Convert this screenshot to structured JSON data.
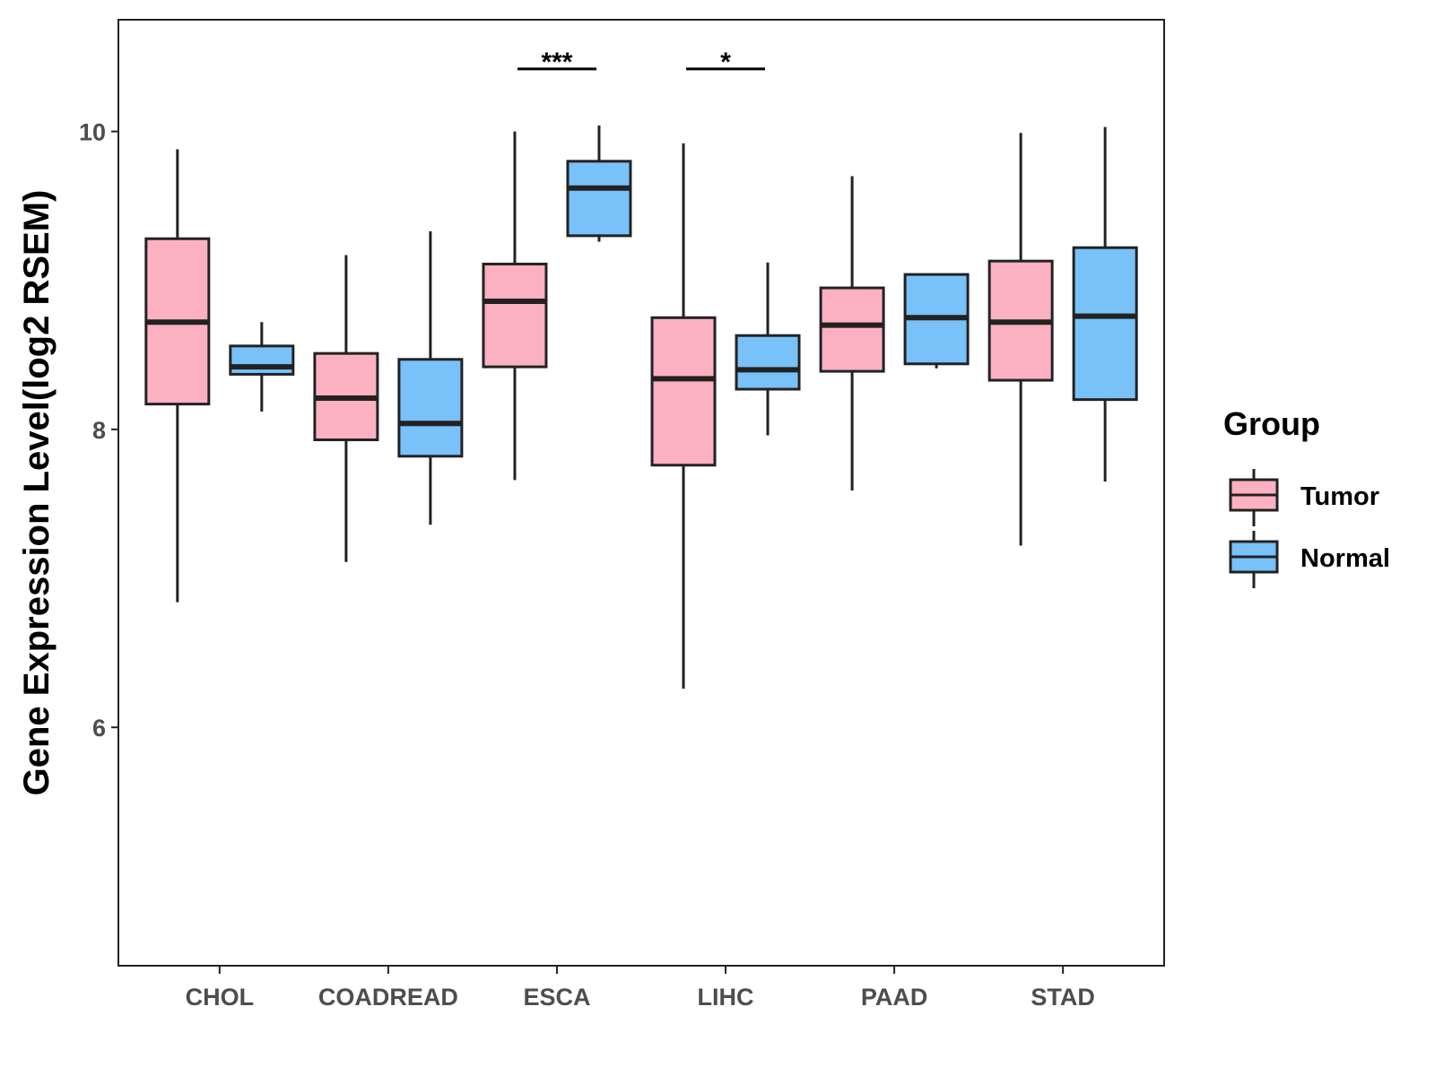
{
  "chart_data": {
    "type": "box",
    "title": "",
    "xlabel": "",
    "ylabel": "Gene Expression Level(log2 RSEM)",
    "ylim": [
      4.4,
      10.75
    ],
    "yticks": [
      6,
      8,
      10
    ],
    "categories": [
      "CHOL",
      "COADREAD",
      "ESCA",
      "LIHC",
      "PAAD",
      "STAD"
    ],
    "grid": false,
    "legend": {
      "title": "Group",
      "position": "right",
      "entries": [
        "Tumor",
        "Normal"
      ]
    },
    "colors": {
      "Tumor": "#fcb1c2",
      "Normal": "#79c1f9",
      "stroke": "#222222"
    },
    "series": [
      {
        "name": "Tumor",
        "boxes": [
          {
            "category": "CHOL",
            "min": 6.84,
            "q1": 8.17,
            "median": 8.72,
            "q3": 9.28,
            "max": 9.88
          },
          {
            "category": "COADREAD",
            "min": 7.11,
            "q1": 7.93,
            "median": 8.21,
            "q3": 8.51,
            "max": 9.17
          },
          {
            "category": "ESCA",
            "min": 7.66,
            "q1": 8.42,
            "median": 8.86,
            "q3": 9.11,
            "max": 10.0
          },
          {
            "category": "LIHC",
            "min": 6.26,
            "q1": 7.76,
            "median": 8.34,
            "q3": 8.75,
            "max": 9.92
          },
          {
            "category": "PAAD",
            "min": 7.59,
            "q1": 8.39,
            "median": 8.7,
            "q3": 8.95,
            "max": 9.7
          },
          {
            "category": "STAD",
            "min": 7.22,
            "q1": 8.33,
            "median": 8.72,
            "q3": 9.13,
            "max": 9.99
          }
        ]
      },
      {
        "name": "Normal",
        "boxes": [
          {
            "category": "CHOL",
            "min": 8.12,
            "q1": 8.37,
            "median": 8.42,
            "q3": 8.56,
            "max": 8.72
          },
          {
            "category": "COADREAD",
            "min": 7.36,
            "q1": 7.82,
            "median": 8.04,
            "q3": 8.47,
            "max": 9.33
          },
          {
            "category": "ESCA",
            "min": 9.26,
            "q1": 9.3,
            "median": 9.62,
            "q3": 9.8,
            "max": 10.04
          },
          {
            "category": "LIHC",
            "min": 7.96,
            "q1": 8.27,
            "median": 8.4,
            "q3": 8.63,
            "max": 9.12
          },
          {
            "category": "PAAD",
            "min": 8.41,
            "q1": 8.44,
            "median": 8.75,
            "q3": 9.04,
            "max": 9.04
          },
          {
            "category": "STAD",
            "min": 7.65,
            "q1": 8.2,
            "median": 8.76,
            "q3": 9.22,
            "max": 10.03
          }
        ]
      }
    ],
    "annotations": [
      {
        "category": "ESCA",
        "text": "***"
      },
      {
        "category": "LIHC",
        "text": "*"
      }
    ]
  }
}
